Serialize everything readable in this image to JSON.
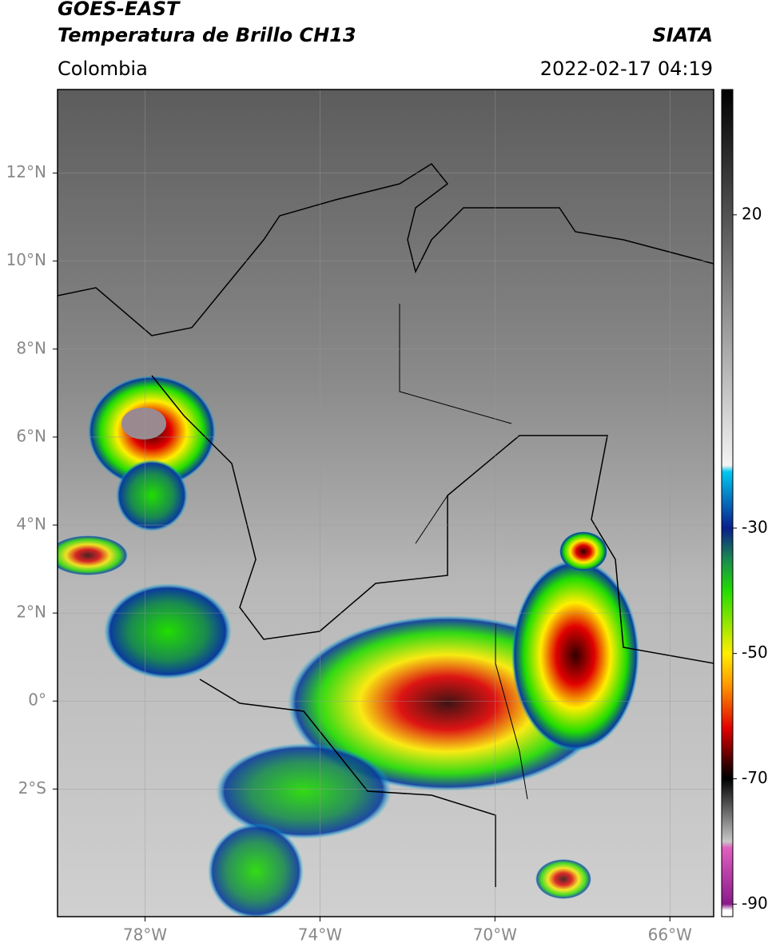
{
  "header": {
    "title": "GOES-EAST",
    "subtitle": "Temperatura de Brillo CH13",
    "region": "Colombia",
    "source": "SIATA",
    "timestamp": "2022-02-17 04:19"
  },
  "map": {
    "xlim": [
      -80,
      -65
    ],
    "ylim": [
      -4.9,
      13.9
    ],
    "xticks": [
      {
        "value": -78,
        "label": "78°W"
      },
      {
        "value": -74,
        "label": "74°W"
      },
      {
        "value": -70,
        "label": "70°W"
      },
      {
        "value": -66,
        "label": "66°W"
      }
    ],
    "yticks": [
      {
        "value": -2,
        "label": "2°S"
      },
      {
        "value": 0,
        "label": "0°"
      },
      {
        "value": 2,
        "label": "2°N"
      },
      {
        "value": 4,
        "label": "4°N"
      },
      {
        "value": 6,
        "label": "6°N"
      },
      {
        "value": 8,
        "label": "8°N"
      },
      {
        "value": 10,
        "label": "10°N"
      },
      {
        "value": 12,
        "label": "12°N"
      }
    ],
    "grid": true
  },
  "colorbar": {
    "clim": [
      -92,
      40
    ],
    "ticks": [
      20,
      -30,
      -50,
      -70,
      -90
    ],
    "stops": [
      {
        "value": 40,
        "color": "#000000"
      },
      {
        "value": -20,
        "color": "#f4f4f4"
      },
      {
        "value": -21,
        "color": "#00c8f0"
      },
      {
        "value": -30,
        "color": "#0a1e8c"
      },
      {
        "value": -35,
        "color": "#1a8a50"
      },
      {
        "value": -40,
        "color": "#22dd00"
      },
      {
        "value": -50,
        "color": "#ffee00"
      },
      {
        "value": -55,
        "color": "#ff9900"
      },
      {
        "value": -62,
        "color": "#e00000"
      },
      {
        "value": -68,
        "color": "#300000"
      },
      {
        "value": -70,
        "color": "#000000"
      },
      {
        "value": -80,
        "color": "#c8c8c8"
      },
      {
        "value": -81,
        "color": "#e060c0"
      },
      {
        "value": -90,
        "color": "#8a1a8a"
      },
      {
        "value": -91,
        "color": "#ffffff"
      },
      {
        "value": -92,
        "color": "#ffffff"
      }
    ]
  }
}
